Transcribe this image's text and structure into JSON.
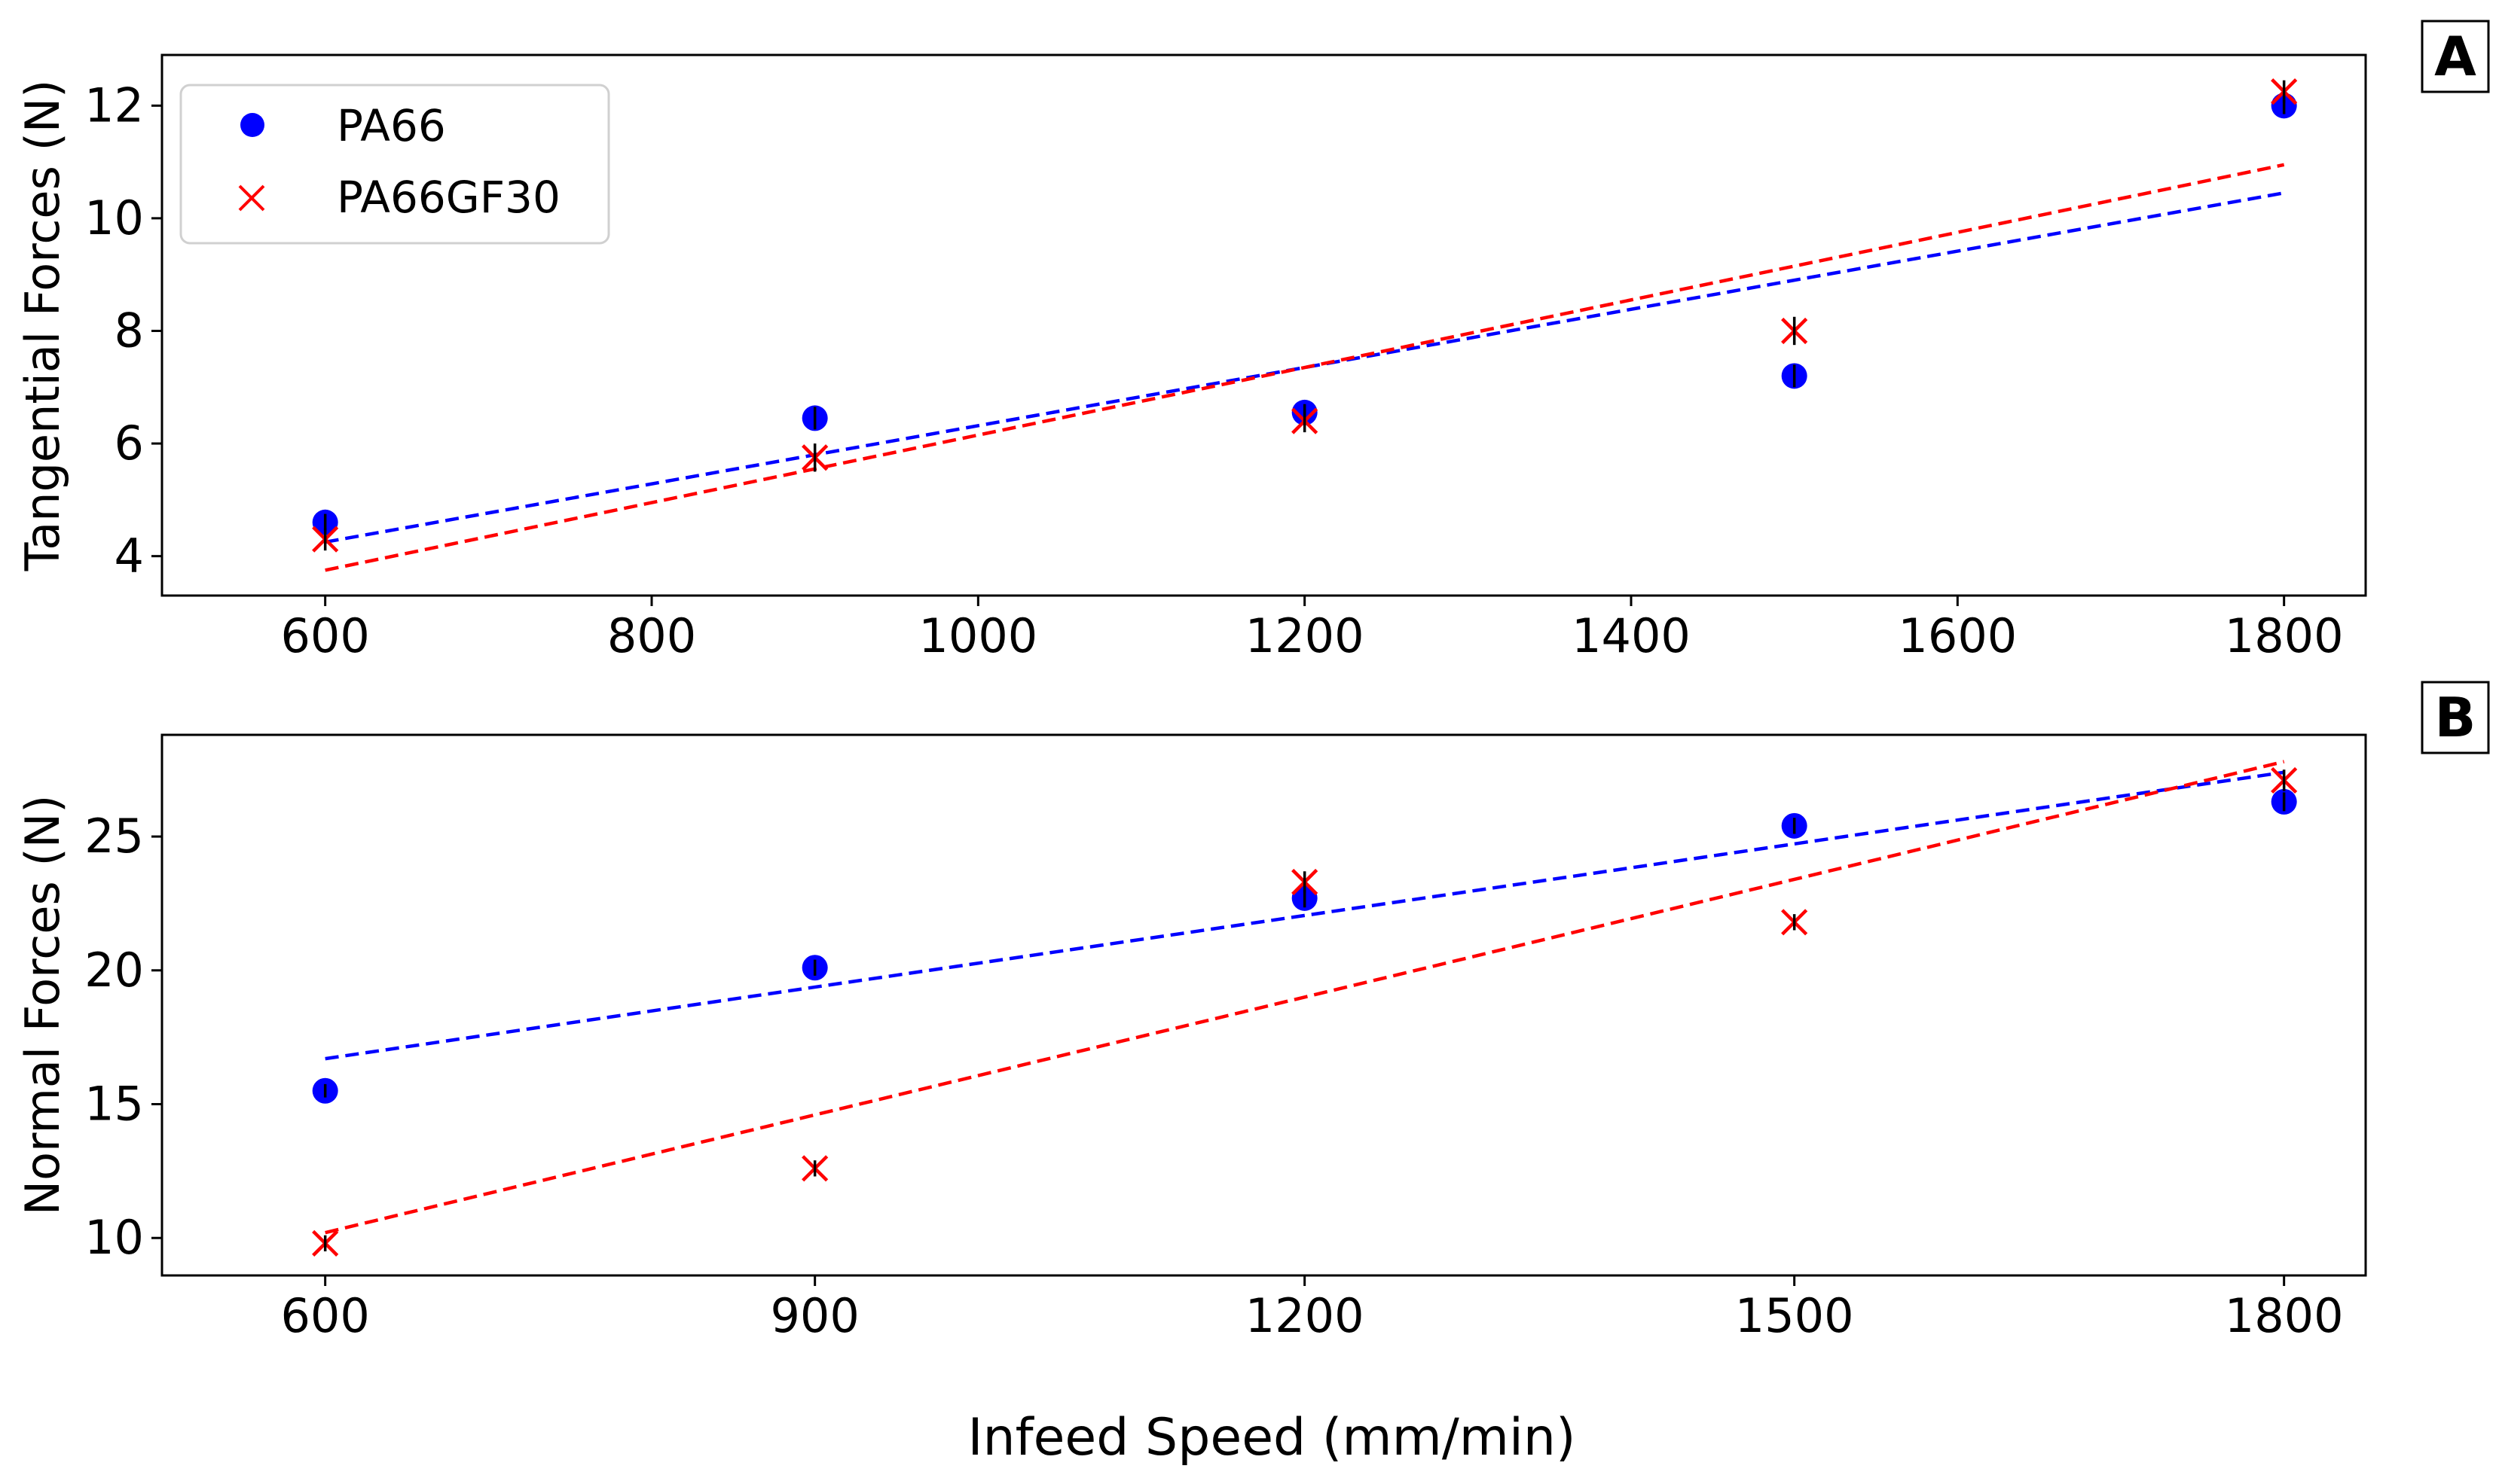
{
  "figure": {
    "xlabel": "Infeed Speed (mm/min)"
  },
  "legend": {
    "entries": [
      {
        "name": "PA66",
        "marker": "circle",
        "color": "#0000ff"
      },
      {
        "name": "PA66GF30",
        "marker": "x",
        "color": "#ff0000"
      }
    ],
    "location": "upper left of panel A"
  },
  "colors": {
    "pa66": "#0000ff",
    "pa66gf30": "#ff0000",
    "errorbar": "#000000"
  },
  "chart_data": [
    {
      "type": "scatter",
      "panel": "A",
      "ylabel": "Tangential Forces (N)",
      "xlim": [
        500,
        1850
      ],
      "ylim": [
        3.3,
        12.9
      ],
      "xticks": [
        600,
        800,
        1000,
        1200,
        1400,
        1600,
        1800
      ],
      "xtick_labels": [
        "600",
        "800",
        "1000",
        "1200",
        "1400",
        "1600",
        "1800"
      ],
      "yticks": [
        4,
        6,
        8,
        10,
        12
      ],
      "ytick_labels": [
        "4",
        "6",
        "8",
        "10",
        "12"
      ],
      "x": [
        600,
        900,
        1200,
        1500,
        1800
      ],
      "series": [
        {
          "name": "PA66",
          "marker": "circle",
          "values": [
            4.6,
            6.45,
            6.55,
            7.2,
            12.0
          ],
          "err": [
            0.15,
            0.2,
            0.15,
            0.2,
            0.15
          ],
          "fit": {
            "style": "dashed",
            "x": [
              600,
              1800
            ],
            "y": [
              4.25,
              10.45
            ]
          }
        },
        {
          "name": "PA66GF30",
          "marker": "x",
          "values": [
            4.3,
            5.75,
            6.4,
            8.0,
            12.25
          ],
          "err": [
            0.2,
            0.25,
            0.2,
            0.25,
            0.2
          ],
          "fit": {
            "style": "dashed",
            "x": [
              600,
              1800
            ],
            "y": [
              3.75,
              10.95
            ]
          }
        }
      ]
    },
    {
      "type": "scatter",
      "panel": "B",
      "ylabel": "Normal Forces (N)",
      "xlim": [
        500,
        1850
      ],
      "ylim": [
        8.6,
        28.8
      ],
      "xticks": [
        600,
        900,
        1200,
        1500,
        1800
      ],
      "xtick_labels": [
        "600",
        "900",
        "1200",
        "1500",
        "1800"
      ],
      "yticks": [
        10,
        15,
        20,
        25
      ],
      "ytick_labels": [
        "10",
        "15",
        "20",
        "25"
      ],
      "x": [
        600,
        900,
        1200,
        1500,
        1800
      ],
      "series": [
        {
          "name": "PA66",
          "marker": "circle",
          "values": [
            15.5,
            20.1,
            22.7,
            25.4,
            26.3
          ],
          "err": [
            0.25,
            0.3,
            0.35,
            0.3,
            0.35
          ],
          "fit": {
            "style": "dashed",
            "x": [
              600,
              1800
            ],
            "y": [
              16.7,
              27.4
            ]
          }
        },
        {
          "name": "PA66GF30",
          "marker": "x",
          "values": [
            9.8,
            12.6,
            23.3,
            21.8,
            27.1
          ],
          "err": [
            0.3,
            0.3,
            0.4,
            0.3,
            0.4
          ],
          "fit": {
            "style": "dashed",
            "x": [
              600,
              1800
            ],
            "y": [
              10.2,
              27.8
            ]
          }
        }
      ]
    }
  ],
  "panels": {
    "A": {
      "letter": "A"
    },
    "B": {
      "letter": "B"
    }
  }
}
